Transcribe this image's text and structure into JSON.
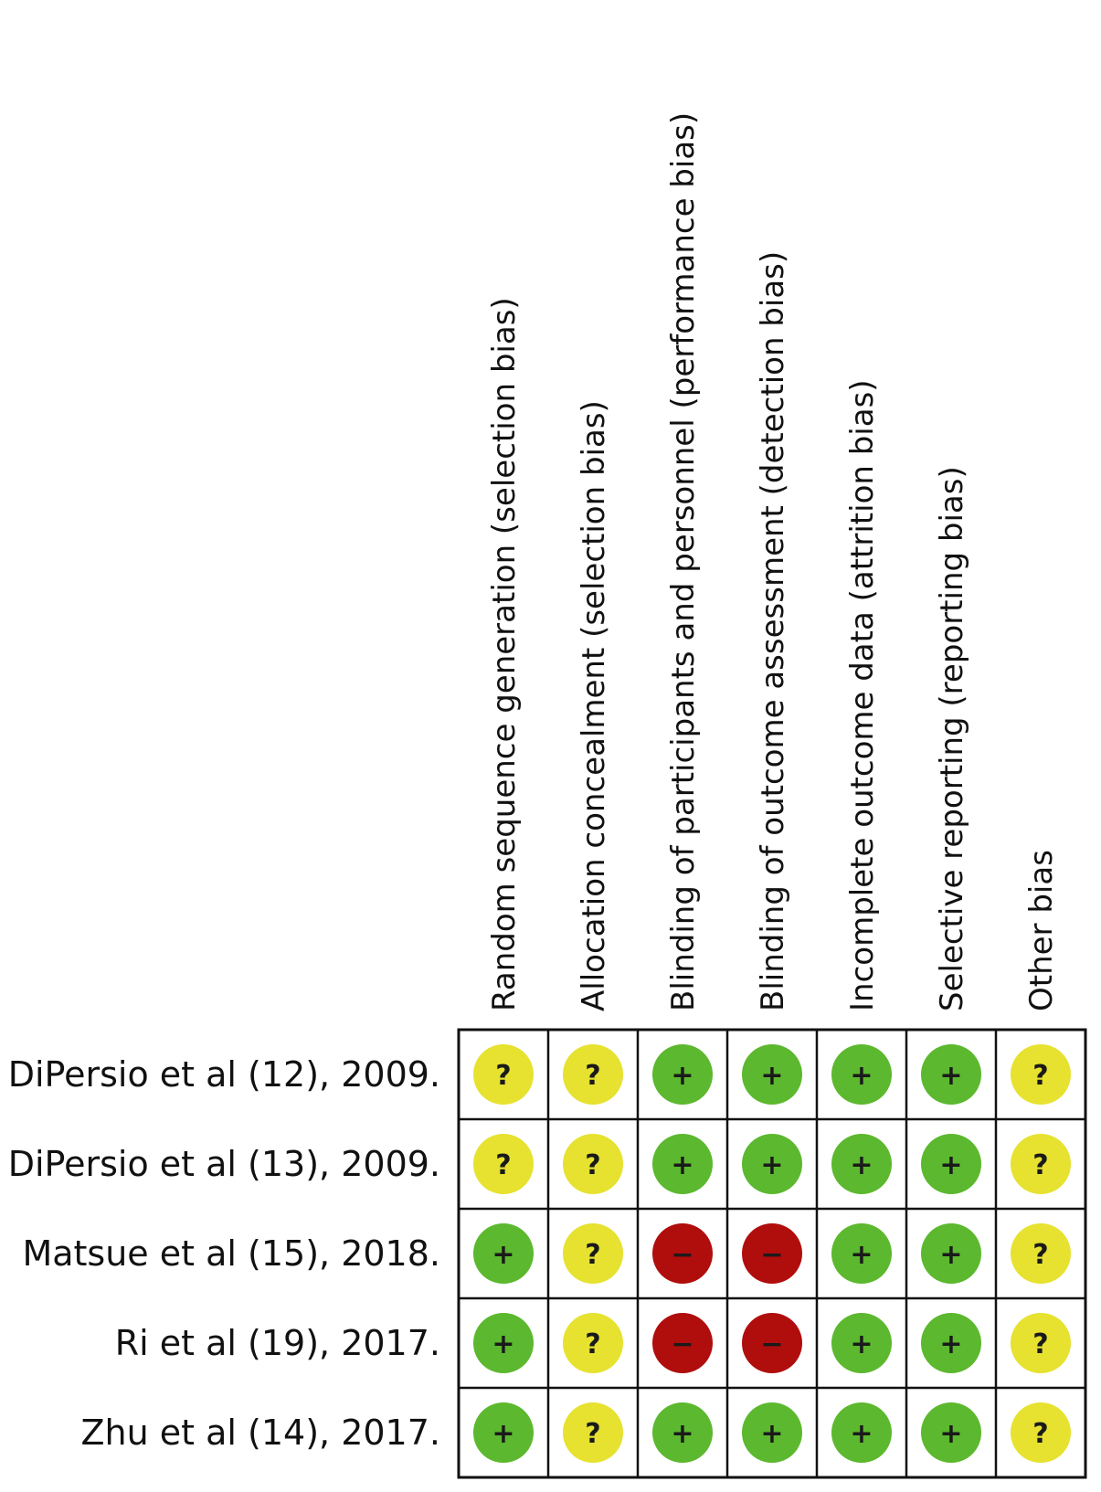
{
  "chart_data": {
    "type": "table",
    "columns": [
      "Random sequence generation (selection bias)",
      "Allocation concealment (selection bias)",
      "Blinding of participants and personnel (performance bias)",
      "Blinding of outcome assessment (detection bias)",
      "Incomplete outcome data (attrition bias)",
      "Selective reporting (reporting bias)",
      "Other bias"
    ],
    "rows": [
      "DiPersio et al (12), 2009.",
      "DiPersio et al (13), 2009.",
      "Matsue et al (15), 2018.",
      "Ri et al (19), 2017.",
      "Zhu et al (14), 2017."
    ],
    "values": [
      [
        "?",
        "?",
        "+",
        "+",
        "+",
        "+",
        "?"
      ],
      [
        "?",
        "?",
        "+",
        "+",
        "+",
        "+",
        "?"
      ],
      [
        "+",
        "?",
        "-",
        "-",
        "+",
        "+",
        "?"
      ],
      [
        "+",
        "?",
        "-",
        "-",
        "+",
        "+",
        "?"
      ],
      [
        "+",
        "?",
        "+",
        "+",
        "+",
        "+",
        "?"
      ]
    ],
    "symbols": {
      "+": "+",
      "?": "?",
      "-": "−"
    },
    "colors": {
      "+": "#5cb82e",
      "?": "#e6e22f",
      "-": "#b00d0d"
    }
  }
}
